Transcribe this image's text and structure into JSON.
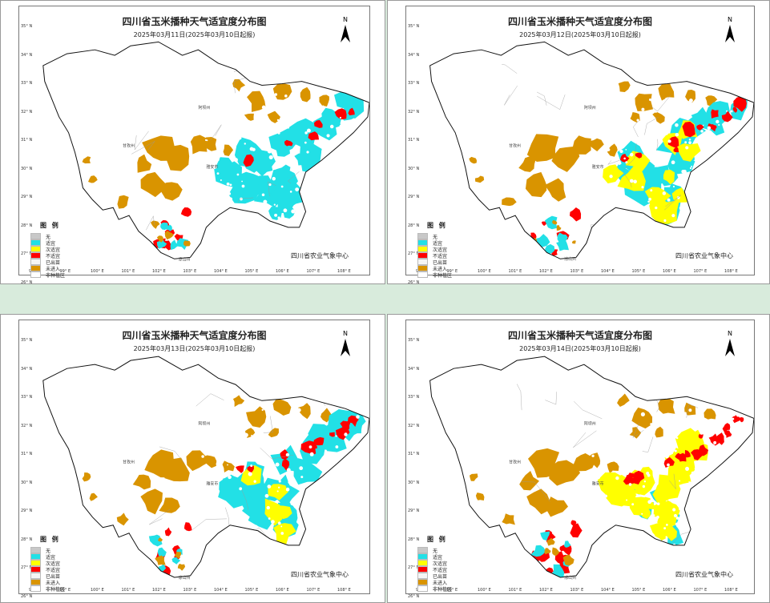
{
  "panels": [
    {
      "title": "四川省玉米播种天气适宜度分布图",
      "subtitle": "2025年03月11日(2025年03月10日起报)",
      "cyan": 6,
      "yellow": 0,
      "red": 2
    },
    {
      "title": "四川省玉米播种天气适宜度分布图",
      "subtitle": "2025年03月12日(2025年03月10日起报)",
      "cyan": 5,
      "yellow": 2,
      "red": 3
    },
    {
      "title": "四川省玉米播种天气适宜度分布图",
      "subtitle": "2025年03月13日(2025年03月10日起报)",
      "cyan": 6,
      "yellow": 1,
      "red": 3
    },
    {
      "title": "四川省玉米播种天气适宜度分布图",
      "subtitle": "2025年03月14日(2025年03月10日起报)",
      "cyan": 1,
      "yellow": 6,
      "red": 5
    }
  ],
  "north_label": "N",
  "legend": {
    "title": "图 例",
    "items": [
      {
        "label": "无",
        "color": "#c8c8c8"
      },
      {
        "label": "适宜",
        "color": "#22e0e6"
      },
      {
        "label": "次适宜",
        "color": "#ffff00"
      },
      {
        "label": "不适宜",
        "color": "#ff0000"
      },
      {
        "label": "已出苗",
        "color": "#f5f5f5"
      },
      {
        "label": "未进入",
        "color": "#d99400"
      },
      {
        "label": "非种植区",
        "color": "#ffffff"
      }
    ]
  },
  "agency": "四川省农业气象中心",
  "lat_labels": [
    "35° N",
    "34° N",
    "33° N",
    "32° N",
    "31° N",
    "30° N",
    "29° N",
    "28° N",
    "27° N",
    "26° N"
  ],
  "lon_labels": [
    "98° E",
    "99° E",
    "100° E",
    "101° E",
    "102° E",
    "103° E",
    "104° E",
    "105° E",
    "106° E",
    "107° E",
    "108° E"
  ],
  "region_labels": [
    "阿坝州",
    "甘孜州",
    "雅安市",
    "凉山州"
  ],
  "colors": {
    "not_entered": "#d99400",
    "suitable": "#22e0e6",
    "sub_suitable": "#ffff00",
    "unsuitable": "#ff0000"
  }
}
